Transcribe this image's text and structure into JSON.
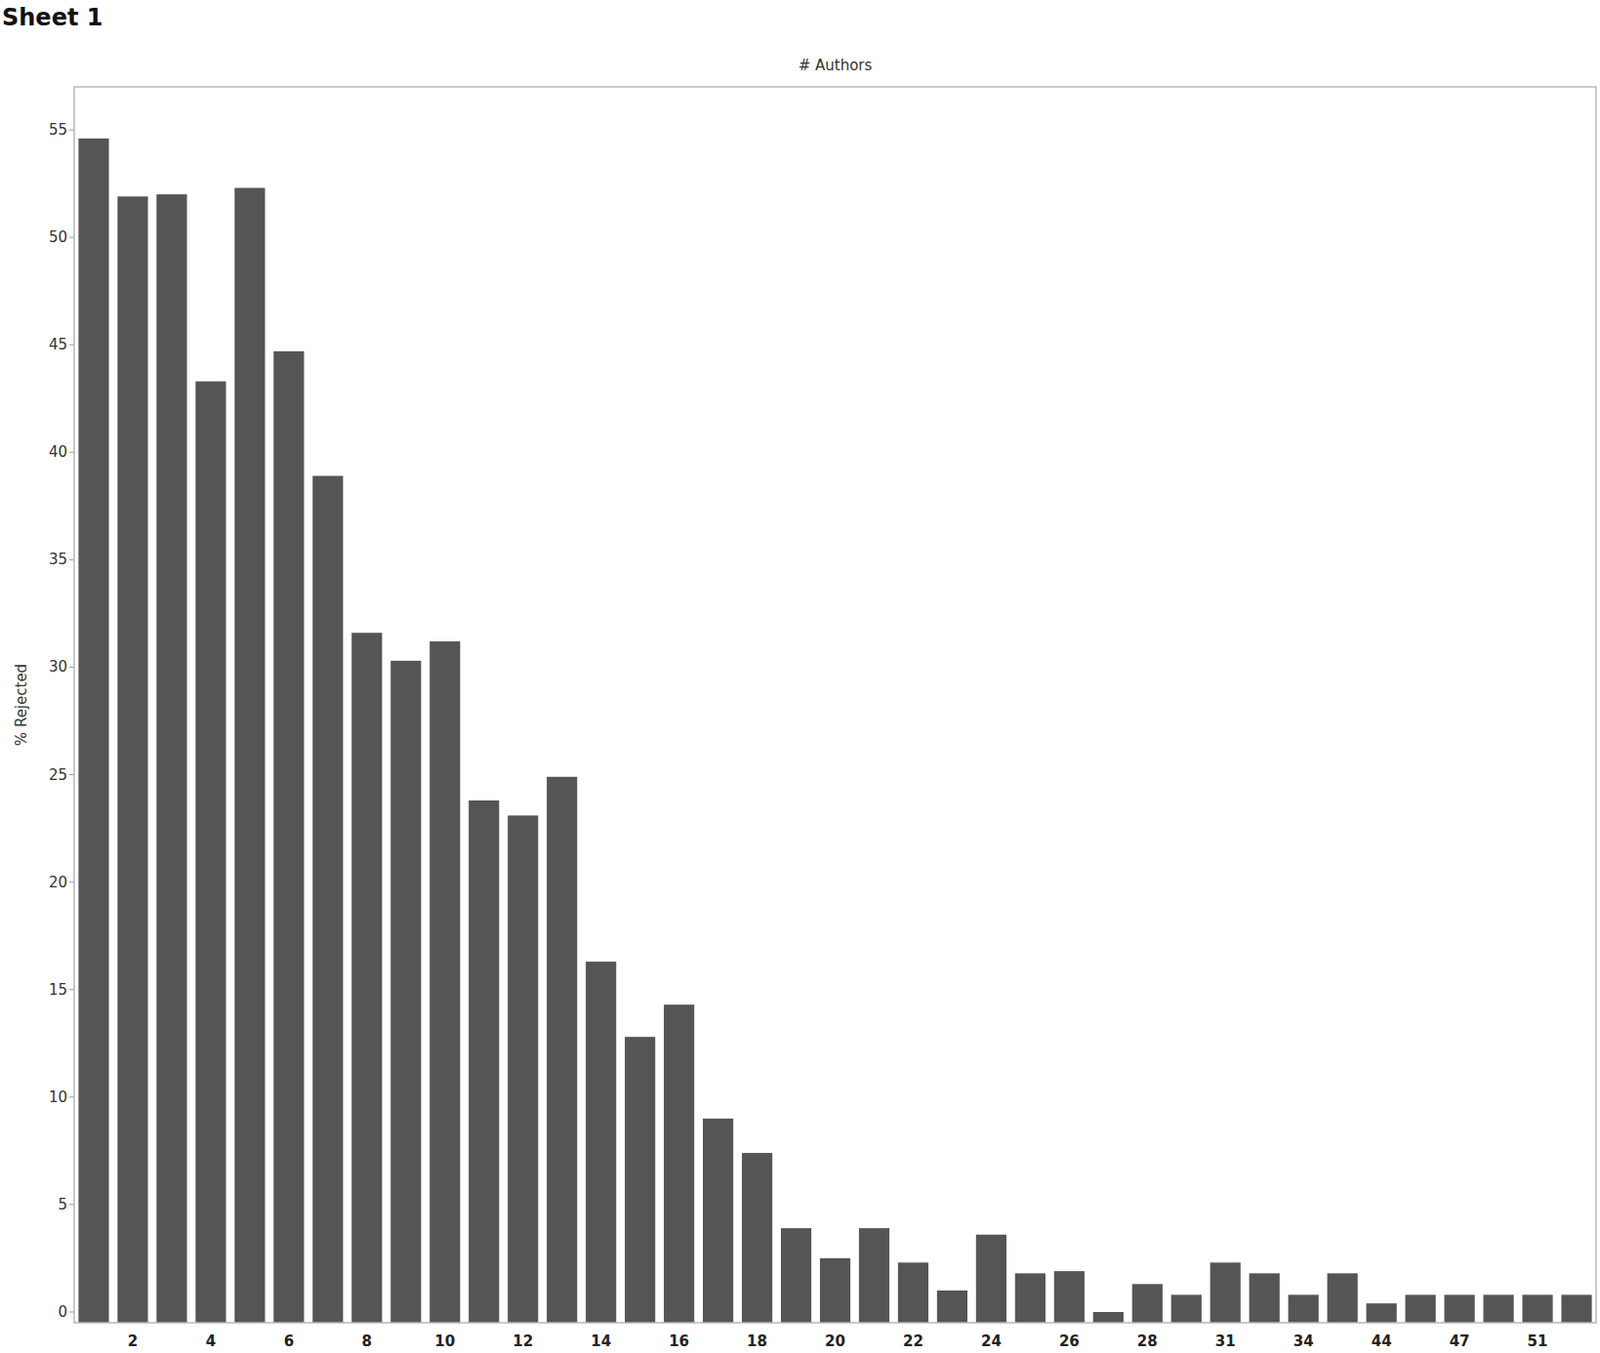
{
  "chart_data": {
    "type": "bar",
    "title": "Sheet 1",
    "subtitle": "# Authors",
    "y_label": "% Rejected",
    "categories": [
      null,
      "2",
      null,
      "4",
      null,
      "6",
      null,
      "8",
      null,
      "10",
      null,
      "12",
      null,
      "14",
      null,
      "16",
      null,
      "18",
      null,
      "20",
      null,
      "22",
      null,
      "24",
      null,
      "26",
      null,
      "28",
      null,
      "31",
      null,
      "34",
      null,
      "44",
      null,
      "47",
      null,
      "51",
      null
    ],
    "values": [
      54.6,
      51.9,
      52.0,
      43.3,
      52.3,
      44.7,
      38.9,
      31.6,
      30.3,
      31.2,
      23.8,
      23.1,
      24.9,
      16.3,
      12.8,
      14.3,
      9.0,
      7.4,
      3.9,
      2.5,
      3.9,
      2.3,
      1.0,
      3.6,
      1.8,
      1.9,
      0.0,
      1.3,
      0.8,
      2.3,
      1.8,
      0.8,
      1.8,
      0.4,
      0.8,
      0.8,
      0.8,
      0.8,
      0.8
    ],
    "color": "#555555",
    "ylim": [
      -0.5,
      57
    ],
    "yticks": [
      0,
      5,
      10,
      15,
      20,
      25,
      30,
      35,
      40,
      45,
      50,
      55
    ],
    "grid": false
  }
}
